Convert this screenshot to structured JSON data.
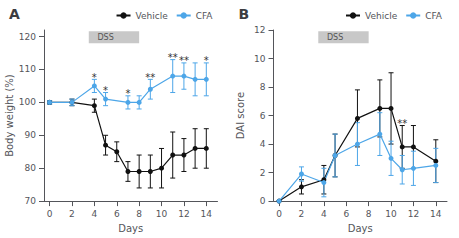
{
  "chart_data": [
    {
      "type": "line",
      "title": "A",
      "xlabel": "Days",
      "ylabel": "Body weight (%)",
      "xlim": [
        -0.5,
        15
      ],
      "xticks": [
        0,
        2,
        4,
        6,
        8,
        10,
        12,
        14
      ],
      "ylim": [
        70,
        122
      ],
      "yticks": [
        70,
        80,
        90,
        100,
        110,
        120
      ],
      "grid": false,
      "legend": "upper right",
      "series": [
        {
          "name": "Vehicle",
          "color": "#111111",
          "marker": "circle",
          "x": [
            0,
            2,
            4,
            5,
            6,
            7,
            8,
            9,
            10,
            11,
            12,
            13,
            14
          ],
          "values": [
            100,
            100,
            99,
            87,
            85,
            79,
            79,
            79,
            80,
            84,
            84,
            86,
            86
          ],
          "errors": [
            0.5,
            1,
            2,
            3,
            3,
            3,
            5,
            5,
            6,
            7,
            5,
            6,
            6
          ]
        },
        {
          "name": "CFA",
          "color": "#4da6e8",
          "marker": "circle",
          "x": [
            0,
            2,
            4,
            5,
            7,
            8,
            9,
            11,
            12,
            13,
            14
          ],
          "values": [
            100,
            100,
            105,
            101,
            100,
            100,
            104,
            108,
            108,
            107,
            107
          ],
          "errors": [
            0.5,
            1,
            2,
            2,
            2,
            2,
            3,
            5,
            4,
            5,
            5
          ]
        }
      ],
      "spans": [
        {
          "label": "DSS",
          "x": [
            3.5,
            8
          ],
          "label_x": 5.0,
          "color": "#c8c8c8"
        }
      ],
      "annotations": [
        {
          "text": "*",
          "x": 4,
          "series": "CFA"
        },
        {
          "text": "*",
          "x": 5,
          "series": "CFA"
        },
        {
          "text": "*",
          "x": 7,
          "series": "CFA"
        },
        {
          "text": "*",
          "x": 14,
          "series": "CFA"
        },
        {
          "text": "**",
          "x": 9,
          "series": "CFA"
        },
        {
          "text": "**",
          "x": 11,
          "series": "CFA"
        },
        {
          "text": "**",
          "x": 12,
          "series": "CFA"
        }
      ]
    },
    {
      "type": "line",
      "title": "B",
      "xlabel": "Days",
      "ylabel": "DAI score",
      "xlim": [
        -0.5,
        15
      ],
      "xticks": [
        0,
        2,
        4,
        6,
        8,
        10,
        12,
        14
      ],
      "ylim": [
        0,
        12
      ],
      "yticks": [
        0,
        2,
        4,
        6,
        8,
        10,
        12
      ],
      "grid": false,
      "legend": "upper right",
      "series": [
        {
          "name": "Vehicle",
          "color": "#111111",
          "marker": "circle",
          "x": [
            0,
            2,
            4,
            5,
            7,
            9,
            10,
            11,
            12,
            14
          ],
          "values": [
            0,
            1,
            1.5,
            3.2,
            5.8,
            6.5,
            6.5,
            3.8,
            3.8,
            2.8
          ],
          "errors": [
            0,
            0.5,
            1,
            1.5,
            2,
            2,
            2.5,
            1.5,
            1.5,
            1.5
          ]
        },
        {
          "name": "CFA",
          "color": "#4da6e8",
          "marker": "circle",
          "x": [
            0,
            2,
            4,
            5,
            7,
            9,
            10,
            11,
            12,
            14
          ],
          "values": [
            0,
            1.9,
            1.3,
            3.2,
            4,
            4.7,
            3,
            2.2,
            2.3,
            2.5
          ],
          "errors": [
            0,
            0.5,
            1,
            1.5,
            1.5,
            1.5,
            1.2,
            1,
            1.2,
            1.2
          ]
        }
      ],
      "spans": [
        {
          "label": "DSS",
          "x": [
            3.5,
            8
          ],
          "label_x": 5.0,
          "color": "#c8c8c8"
        }
      ],
      "annotations": [
        {
          "text": "**",
          "x": 11,
          "series": "Vehicle"
        }
      ]
    }
  ]
}
